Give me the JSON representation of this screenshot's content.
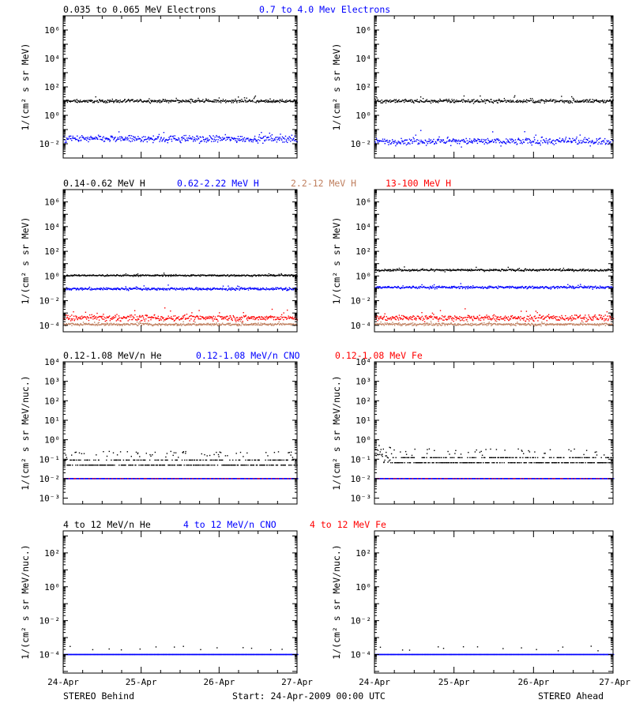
{
  "footer": {
    "left": "STEREO Behind",
    "center": "Start: 24-Apr-2009 00:00 UTC",
    "right": "STEREO Ahead"
  },
  "colors": {
    "black": "#000000",
    "blue": "#0000ff",
    "red": "#ff0000",
    "tan": "#c08060",
    "axis": "#000000"
  },
  "chart_data": [
    {
      "id": "electrons",
      "type": "scatter",
      "ylabel": "1/(cm² s sr MeV)",
      "y_scale": "log",
      "ylim": [
        0.001,
        10000000
      ],
      "y_ticks": [
        {
          "v": 0.01,
          "t": "10⁻²"
        },
        {
          "v": 1,
          "t": "10⁰"
        },
        {
          "v": 100,
          "t": "10²"
        },
        {
          "v": 10000,
          "t": "10⁴"
        },
        {
          "v": 1000000,
          "t": "10⁶"
        }
      ],
      "xlim": [
        24,
        27
      ],
      "x_ticks": [
        "24-Apr",
        "25-Apr",
        "26-Apr",
        "27-Apr"
      ],
      "x_ticks_visible": false,
      "legend": [
        {
          "text": "0.035 to 0.065 MeV Electrons",
          "color": "black"
        },
        {
          "text": "0.7 to 4.0 Mev Electrons",
          "color": "blue"
        }
      ],
      "behind": [
        {
          "color": "black",
          "level": 10,
          "spread": 0.05
        },
        {
          "color": "blue",
          "level": 0.022,
          "spread": 0.12
        }
      ],
      "ahead": [
        {
          "color": "black",
          "level": 10,
          "spread": 0.06
        },
        {
          "color": "blue",
          "level": 0.015,
          "spread": 0.12
        }
      ]
    },
    {
      "id": "protons",
      "type": "scatter",
      "ylabel": "1/(cm² s sr MeV)",
      "y_scale": "log",
      "ylim": [
        3e-05,
        10000000
      ],
      "y_ticks": [
        {
          "v": 0.0001,
          "t": "10⁻⁴"
        },
        {
          "v": 0.01,
          "t": "10⁻²"
        },
        {
          "v": 1,
          "t": "10⁰"
        },
        {
          "v": 100,
          "t": "10²"
        },
        {
          "v": 10000,
          "t": "10⁴"
        },
        {
          "v": 1000000,
          "t": "10⁶"
        }
      ],
      "xlim": [
        24,
        27
      ],
      "x_ticks": [
        "24-Apr",
        "25-Apr",
        "26-Apr",
        "27-Apr"
      ],
      "x_ticks_visible": false,
      "legend": [
        {
          "text": "0.14-0.62 MeV H",
          "color": "black"
        },
        {
          "text": "0.62-2.22 MeV H",
          "color": "blue"
        },
        {
          "text": "2.2-12 MeV H",
          "color": "tan"
        },
        {
          "text": "13-100 MeV H",
          "color": "red"
        }
      ],
      "behind": [
        {
          "color": "black",
          "level": 1.1,
          "spread": 0.03
        },
        {
          "color": "blue",
          "level": 0.09,
          "spread": 0.05
        },
        {
          "color": "red",
          "level": 0.0004,
          "spread": 0.12
        },
        {
          "color": "tan",
          "level": 0.00012,
          "spread": 0.05
        }
      ],
      "ahead": [
        {
          "color": "black",
          "level": 3.0,
          "spread": 0.04
        },
        {
          "color": "blue",
          "level": 0.12,
          "spread": 0.05
        },
        {
          "color": "red",
          "level": 0.0004,
          "spread": 0.12
        },
        {
          "color": "tan",
          "level": 0.00012,
          "spread": 0.05
        }
      ]
    },
    {
      "id": "ions_low",
      "type": "scatter",
      "ylabel": "1/(cm² s sr MeV/nuc.)",
      "y_scale": "log",
      "ylim": [
        0.0005,
        10000
      ],
      "y_ticks": [
        {
          "v": 0.001,
          "t": "10⁻³"
        },
        {
          "v": 0.01,
          "t": "10⁻²"
        },
        {
          "v": 0.1,
          "t": "10⁻¹"
        },
        {
          "v": 1,
          "t": "10⁰"
        },
        {
          "v": 10,
          "t": "10¹"
        },
        {
          "v": 100,
          "t": "10²"
        },
        {
          "v": 1000,
          "t": "10³"
        },
        {
          "v": 10000,
          "t": "10⁴"
        }
      ],
      "xlim": [
        24,
        27
      ],
      "x_ticks": [
        "24-Apr",
        "25-Apr",
        "26-Apr",
        "27-Apr"
      ],
      "x_ticks_visible": false,
      "legend": [
        {
          "text": "0.12-1.08 MeV/n He",
          "color": "black"
        },
        {
          "text": "0.12-1.08 MeV/n CNO",
          "color": "blue"
        },
        {
          "text": "0.12-1.08 MeV Fe",
          "color": "red"
        }
      ],
      "behind": [
        {
          "color": "black",
          "level": 0.09,
          "spread": 0.02,
          "mode": "quantized"
        },
        {
          "color": "blue",
          "level": 0.01,
          "spread": 0.0,
          "mode": "line"
        },
        {
          "color": "red",
          "level": 0.0102,
          "spread": 0.0,
          "mode": "sparse"
        }
      ],
      "ahead": [
        {
          "color": "black",
          "level": 0.12,
          "spread": 0.1,
          "mode": "quantized"
        },
        {
          "color": "blue",
          "level": 0.01,
          "spread": 0.0,
          "mode": "line"
        },
        {
          "color": "red",
          "level": 0.0102,
          "spread": 0.0,
          "mode": "sparse"
        }
      ]
    },
    {
      "id": "ions_high",
      "type": "scatter",
      "ylabel": "1/(cm² s sr MeV/nuc.)",
      "y_scale": "log",
      "ylim": [
        8e-06,
        2000
      ],
      "y_ticks": [
        {
          "v": 0.0001,
          "t": "10⁻⁴"
        },
        {
          "v": 0.01,
          "t": "10⁻²"
        },
        {
          "v": 1,
          "t": "10⁰"
        },
        {
          "v": 100,
          "t": "10²"
        }
      ],
      "xlim": [
        24,
        27
      ],
      "x_ticks": [
        "24-Apr",
        "25-Apr",
        "26-Apr",
        "27-Apr"
      ],
      "x_ticks_visible": true,
      "legend": [
        {
          "text": "4 to 12 MeV/n He",
          "color": "black"
        },
        {
          "text": "4 to 12 MeV/n CNO",
          "color": "blue"
        },
        {
          "text": "4 to 12 MeV Fe",
          "color": "red"
        }
      ],
      "behind": [
        {
          "color": "blue",
          "level": 0.0001,
          "spread": 0.0,
          "mode": "line"
        },
        {
          "color": "black",
          "level": 0.0002,
          "spread": 0.0,
          "mode": "rare"
        }
      ],
      "ahead": [
        {
          "color": "blue",
          "level": 0.0001,
          "spread": 0.0,
          "mode": "line"
        },
        {
          "color": "black",
          "level": 0.0002,
          "spread": 0.0,
          "mode": "rare"
        }
      ]
    }
  ]
}
